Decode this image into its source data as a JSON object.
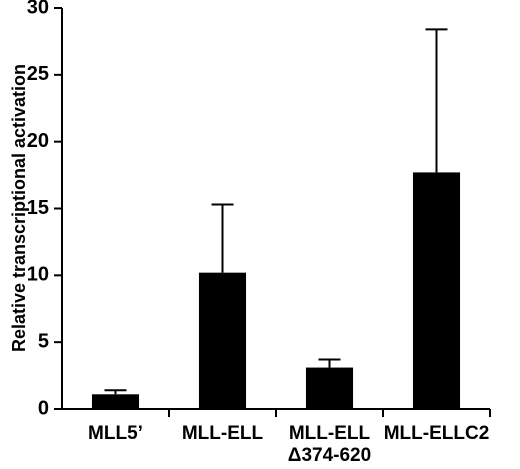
{
  "chart_data": {
    "type": "bar",
    "y_label": "Relative transcriptional activation",
    "categories": [
      "MLL5’",
      "MLL-ELL",
      "MLL-ELL\nΔ374-620",
      "MLL-ELLC2"
    ],
    "values": [
      1.1,
      10.2,
      3.1,
      17.7
    ],
    "errors": [
      0.3,
      5.1,
      0.6,
      10.7
    ],
    "color": "#000000",
    "ylim": [
      0,
      30
    ],
    "yticks": [
      0,
      5,
      10,
      15,
      20,
      25,
      30
    ],
    "grid": false
  }
}
